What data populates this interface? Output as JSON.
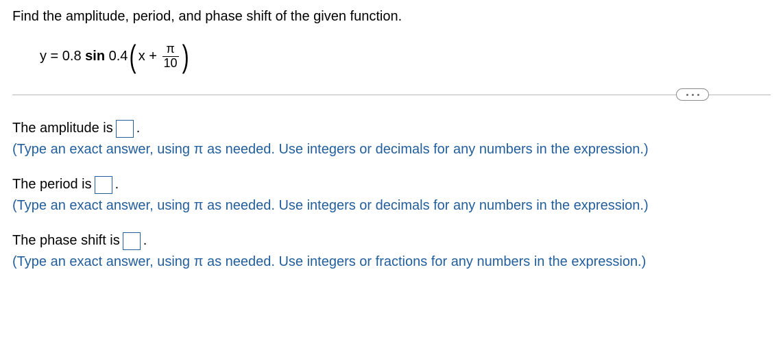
{
  "question": "Find the amplitude, period, and phase shift of the given function.",
  "equation": {
    "lhs": "y = ",
    "coef_a": "0.8 ",
    "func": "sin ",
    "coef_b": "0.4",
    "inside_left": "x + ",
    "frac_num": "π",
    "frac_den": "10"
  },
  "answers": [
    {
      "label_pre": "The amplitude is ",
      "label_post": ".",
      "hint": "(Type an exact answer, using π as needed. Use integers or decimals for any numbers in the expression.)"
    },
    {
      "label_pre": "The period is ",
      "label_post": ".",
      "hint": "(Type an exact answer, using π as needed. Use integers or decimals for any numbers in the expression.)"
    },
    {
      "label_pre": "The phase shift is ",
      "label_post": ".",
      "hint": "(Type an exact answer, using π as needed. Use integers or fractions for any numbers in the expression.)"
    }
  ],
  "colors": {
    "hint_color": "#225e9c",
    "input_border": "#225e9c",
    "divider": "#b9b9b9"
  }
}
